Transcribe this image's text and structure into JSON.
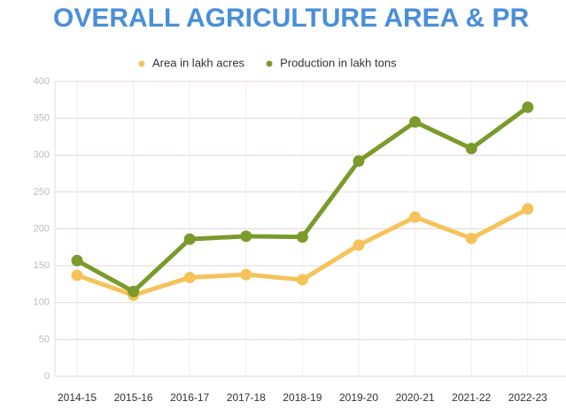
{
  "chart_data": {
    "type": "line",
    "title": "OVERALL AGRICULTURE AREA & PR",
    "categories": [
      "2014-15",
      "2015-16",
      "2016-17",
      "2017-18",
      "2018-19",
      "2019-20",
      "2020-21",
      "2021-22",
      "2022-23"
    ],
    "series": [
      {
        "name": "Area in lakh acres",
        "color": "#f5c35a",
        "values": [
          137,
          110,
          134,
          138,
          131,
          178,
          216,
          187,
          227
        ]
      },
      {
        "name": "Production in lakh tons",
        "color": "#7b9a2c",
        "values": [
          157,
          115,
          186,
          190,
          189,
          292,
          345,
          309,
          365
        ]
      }
    ],
    "ylim": [
      0,
      400
    ],
    "yticks": [
      0,
      50,
      100,
      150,
      200,
      250,
      300,
      350,
      400
    ],
    "grid": true
  }
}
